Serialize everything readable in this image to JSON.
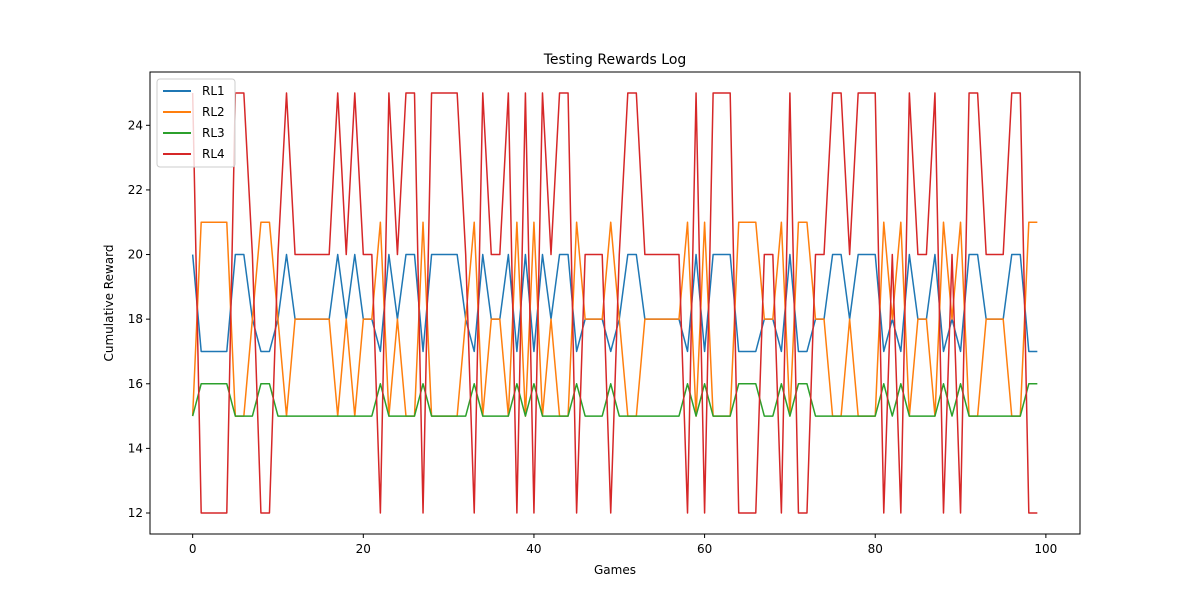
{
  "chart_data": {
    "type": "line",
    "title": "Testing Rewards Log",
    "xlabel": "Games",
    "ylabel": "Cumulative Reward",
    "xlim": [
      -5.0,
      104.0
    ],
    "ylim": [
      11.35,
      25.65
    ],
    "xticks": [
      0,
      20,
      40,
      60,
      80,
      100
    ],
    "yticks": [
      12,
      14,
      16,
      18,
      20,
      22,
      24
    ],
    "grid": false,
    "legend_position": "top-left",
    "x": [
      0,
      1,
      2,
      3,
      4,
      5,
      6,
      7,
      8,
      9,
      10,
      11,
      12,
      13,
      14,
      15,
      16,
      17,
      18,
      19,
      20,
      21,
      22,
      23,
      24,
      25,
      26,
      27,
      28,
      29,
      30,
      31,
      32,
      33,
      34,
      35,
      36,
      37,
      38,
      39,
      40,
      41,
      42,
      43,
      44,
      45,
      46,
      47,
      48,
      49,
      50,
      51,
      52,
      53,
      54,
      55,
      56,
      57,
      58,
      59,
      60,
      61,
      62,
      63,
      64,
      65,
      66,
      67,
      68,
      69,
      70,
      71,
      72,
      73,
      74,
      75,
      76,
      77,
      78,
      79,
      80,
      81,
      82,
      83,
      84,
      85,
      86,
      87,
      88,
      89,
      90,
      91,
      92,
      93,
      94,
      95,
      96,
      97,
      98,
      99
    ],
    "series": [
      {
        "name": "RL1",
        "color": "#1f77b4",
        "values": [
          20,
          17,
          17,
          17,
          17,
          20,
          20,
          18,
          17,
          17,
          18,
          20,
          18,
          18,
          18,
          18,
          18,
          20,
          18,
          20,
          18,
          18,
          17,
          20,
          18,
          20,
          20,
          17,
          20,
          20,
          20,
          20,
          18,
          17,
          20,
          18,
          18,
          20,
          17,
          20,
          17,
          20,
          18,
          20,
          20,
          17,
          18,
          18,
          18,
          17,
          18,
          20,
          20,
          18,
          18,
          18,
          18,
          18,
          17,
          20,
          17,
          20,
          20,
          20,
          17,
          17,
          17,
          18,
          18,
          17,
          20,
          17,
          17,
          18,
          18,
          20,
          20,
          18,
          20,
          20,
          20,
          17,
          18,
          17,
          20,
          18,
          18,
          20,
          17,
          18,
          17,
          20,
          20,
          18,
          18,
          18,
          20,
          20,
          17,
          17
        ]
      },
      {
        "name": "RL2",
        "color": "#ff7f0e",
        "values": [
          15,
          21,
          21,
          21,
          21,
          15,
          15,
          18,
          21,
          21,
          18,
          15,
          18,
          18,
          18,
          18,
          18,
          15,
          18,
          15,
          18,
          18,
          21,
          15,
          18,
          15,
          15,
          21,
          15,
          15,
          15,
          15,
          18,
          21,
          15,
          18,
          18,
          15,
          21,
          15,
          21,
          15,
          18,
          15,
          15,
          21,
          18,
          18,
          18,
          21,
          18,
          15,
          15,
          18,
          18,
          18,
          18,
          18,
          21,
          15,
          21,
          15,
          15,
          15,
          21,
          21,
          21,
          18,
          18,
          21,
          15,
          21,
          21,
          18,
          18,
          15,
          15,
          18,
          15,
          15,
          15,
          21,
          18,
          21,
          15,
          18,
          18,
          15,
          21,
          18,
          21,
          15,
          15,
          18,
          18,
          18,
          15,
          15,
          21,
          21
        ]
      },
      {
        "name": "RL3",
        "color": "#2ca02c",
        "values": [
          15,
          16,
          16,
          16,
          16,
          15,
          15,
          15,
          16,
          16,
          15,
          15,
          15,
          15,
          15,
          15,
          15,
          15,
          15,
          15,
          15,
          15,
          16,
          15,
          15,
          15,
          15,
          16,
          15,
          15,
          15,
          15,
          15,
          16,
          15,
          15,
          15,
          15,
          16,
          15,
          16,
          15,
          15,
          15,
          15,
          16,
          15,
          15,
          15,
          16,
          15,
          15,
          15,
          15,
          15,
          15,
          15,
          15,
          16,
          15,
          16,
          15,
          15,
          15,
          16,
          16,
          16,
          15,
          15,
          16,
          15,
          16,
          16,
          15,
          15,
          15,
          15,
          15,
          15,
          15,
          15,
          16,
          15,
          16,
          15,
          15,
          15,
          15,
          16,
          15,
          16,
          15,
          15,
          15,
          15,
          15,
          15,
          15,
          16,
          16
        ]
      },
      {
        "name": "RL4",
        "color": "#d62728",
        "values": [
          25,
          12,
          12,
          12,
          12,
          25,
          25,
          20,
          12,
          12,
          20,
          25,
          20,
          20,
          20,
          20,
          20,
          25,
          20,
          25,
          20,
          20,
          12,
          25,
          20,
          25,
          25,
          12,
          25,
          25,
          25,
          25,
          20,
          12,
          25,
          20,
          20,
          25,
          12,
          25,
          12,
          25,
          20,
          25,
          25,
          12,
          20,
          20,
          20,
          12,
          20,
          25,
          25,
          20,
          20,
          20,
          20,
          20,
          12,
          25,
          12,
          25,
          25,
          25,
          12,
          12,
          12,
          20,
          20,
          12,
          25,
          12,
          12,
          20,
          20,
          25,
          25,
          20,
          25,
          25,
          25,
          12,
          20,
          12,
          25,
          20,
          20,
          25,
          12,
          20,
          12,
          25,
          25,
          20,
          20,
          20,
          25,
          25,
          12,
          12
        ]
      }
    ]
  }
}
